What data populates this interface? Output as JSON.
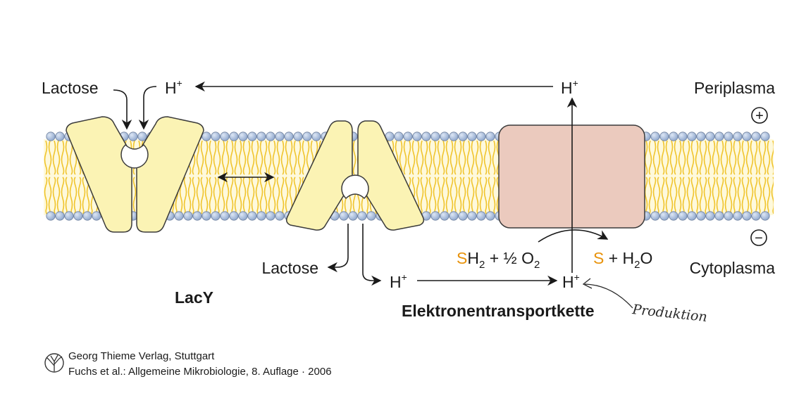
{
  "labels": {
    "lactose_top": "Lactose",
    "h_top_left": "H",
    "h_top_right": "H",
    "proton_sup": "+",
    "periplasma": "Periplasma",
    "plus_sign": "+",
    "minus_sign": "−",
    "cytoplasma": "Cytoplasma",
    "lactose_bottom": "Lactose",
    "h_bottom_left": "H",
    "h_bottom_right": "H",
    "lacy": "LacY",
    "etc": "Elektronentransportkette",
    "annotation": "Produktion"
  },
  "reaction": {
    "s_left": "S",
    "h2_left": "H",
    "sub2_a": "2",
    "mid": " + ½ O",
    "sub2_b": "2",
    "s_right": "S",
    "plus_h2o_a": " + H",
    "sub2_c": "2",
    "plus_h2o_b": "O"
  },
  "credit": {
    "line1": "Georg Thieme Verlag, Stuttgart",
    "line2": "Fuchs et al.: Allgemeine Mikrobiologie, 8. Auflage · 2006"
  },
  "colors": {
    "lipid_head": "#a9bedc",
    "lipid_tail": "#f0c42c",
    "protein": "#fbf3b4",
    "etc_box": "#ebcabe",
    "accent_orange": "#e8930c"
  }
}
